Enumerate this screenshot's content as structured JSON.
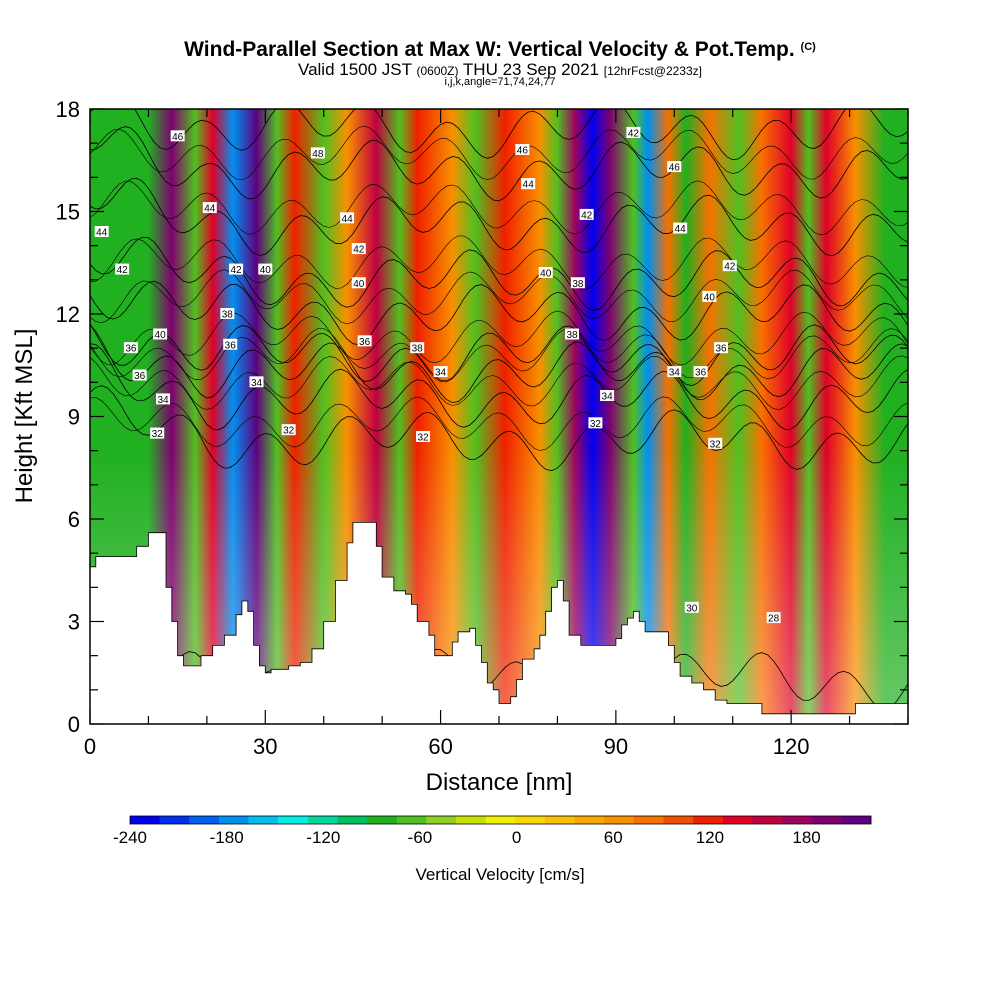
{
  "header": {
    "title": "Wind-Parallel Section at Max W: Vertical Velocity & Pot.Temp.",
    "title_mark": "(C)",
    "subtitle_a": "Valid 1500 JST",
    "subtitle_b": "(0600Z)",
    "subtitle_c": "THU 23 Sep 2021",
    "subtitle_d": "[12hrFcst@2233z]",
    "line3": "i,j,k,angle=71,74,24,77"
  },
  "chart_data": {
    "type": "heatmap",
    "xlabel": "Distance [nm]",
    "ylabel": "Height [Kft MSL]",
    "xlim": [
      0,
      140
    ],
    "ylim": [
      0,
      18
    ],
    "x_ticks": [
      "0",
      "30",
      "60",
      "90",
      "120"
    ],
    "x_tick_values": [
      0,
      30,
      60,
      90,
      120
    ],
    "y_ticks": [
      "0",
      "3",
      "6",
      "9",
      "12",
      "15",
      "18"
    ],
    "y_tick_values": [
      0,
      3,
      6,
      9,
      12,
      15,
      18
    ],
    "colorbar": {
      "title": "Vertical Velocity [cm/s]",
      "labels": [
        "-240",
        "-180",
        "-120",
        "-60",
        "0",
        "60",
        "120",
        "180"
      ],
      "label_values": [
        -240,
        -180,
        -120,
        -60,
        0,
        60,
        120,
        180
      ],
      "range": [
        -240,
        220
      ],
      "colors": [
        "#0000f0",
        "#0030f0",
        "#0060f0",
        "#0090f0",
        "#00c0f0",
        "#00f0e6",
        "#00d8a0",
        "#00c060",
        "#20b020",
        "#50c020",
        "#90d020",
        "#c8e000",
        "#f0f000",
        "#f8d800",
        "#f8c000",
        "#f8a800",
        "#f89000",
        "#f87000",
        "#f05000",
        "#f02000",
        "#e00028",
        "#c00040",
        "#a00060",
        "#800070",
        "#600080"
      ]
    },
    "velocity_bands": [
      {
        "x": 10,
        "value": -90
      },
      {
        "x": 14,
        "value": 200
      },
      {
        "x": 18,
        "value": -60
      },
      {
        "x": 21,
        "value": 140
      },
      {
        "x": 24.5,
        "value": -180
      },
      {
        "x": 28.5,
        "value": 220
      },
      {
        "x": 32,
        "value": -60
      },
      {
        "x": 35,
        "value": 120
      },
      {
        "x": 40,
        "value": -60
      },
      {
        "x": 44,
        "value": 60
      },
      {
        "x": 49,
        "value": 160
      },
      {
        "x": 53,
        "value": -60
      },
      {
        "x": 56,
        "value": 120
      },
      {
        "x": 62,
        "value": 60
      },
      {
        "x": 66,
        "value": -60
      },
      {
        "x": 71,
        "value": 120
      },
      {
        "x": 77,
        "value": 60
      },
      {
        "x": 80,
        "value": -60
      },
      {
        "x": 83,
        "value": 170
      },
      {
        "x": 86,
        "value": -240
      },
      {
        "x": 89,
        "value": 190
      },
      {
        "x": 93,
        "value": -60
      },
      {
        "x": 95.5,
        "value": -180
      },
      {
        "x": 99,
        "value": 90
      },
      {
        "x": 102,
        "value": -90
      },
      {
        "x": 106,
        "value": 90
      },
      {
        "x": 111,
        "value": -60
      },
      {
        "x": 115,
        "value": 90
      },
      {
        "x": 120,
        "value": 130
      },
      {
        "x": 123,
        "value": -60
      },
      {
        "x": 126,
        "value": 140
      },
      {
        "x": 131,
        "value": 60
      },
      {
        "x": 136,
        "value": -90
      }
    ],
    "terrain": [
      [
        0,
        4.6
      ],
      [
        1,
        4.9
      ],
      [
        6,
        4.9
      ],
      [
        8,
        5.2
      ],
      [
        10,
        5.6
      ],
      [
        12,
        5.6
      ],
      [
        13,
        4.0
      ],
      [
        14,
        3.0
      ],
      [
        15,
        2.0
      ],
      [
        16,
        1.7
      ],
      [
        18,
        1.7
      ],
      [
        19,
        2.0
      ],
      [
        21,
        2.3
      ],
      [
        23,
        2.6
      ],
      [
        25,
        3.2
      ],
      [
        26,
        3.6
      ],
      [
        27,
        3.3
      ],
      [
        28,
        2.3
      ],
      [
        29,
        1.7
      ],
      [
        30,
        1.5
      ],
      [
        31,
        1.6
      ],
      [
        34,
        1.7
      ],
      [
        36,
        1.8
      ],
      [
        38,
        2.2
      ],
      [
        40,
        3.0
      ],
      [
        42,
        4.2
      ],
      [
        44,
        5.3
      ],
      [
        45,
        5.9
      ],
      [
        48,
        5.9
      ],
      [
        49,
        5.2
      ],
      [
        50,
        4.3
      ],
      [
        52,
        3.9
      ],
      [
        54,
        3.8
      ],
      [
        55,
        3.5
      ],
      [
        56,
        3.0
      ],
      [
        58,
        2.6
      ],
      [
        59,
        2.0
      ],
      [
        61,
        2.0
      ],
      [
        62,
        2.4
      ],
      [
        63,
        2.7
      ],
      [
        65,
        2.8
      ],
      [
        66,
        2.3
      ],
      [
        67,
        1.8
      ],
      [
        68,
        1.2
      ],
      [
        69,
        1.0
      ],
      [
        70,
        0.6
      ],
      [
        72,
        0.8
      ],
      [
        73,
        1.3
      ],
      [
        74,
        1.9
      ],
      [
        76,
        2.2
      ],
      [
        77,
        2.6
      ],
      [
        78,
        3.3
      ],
      [
        79,
        4.0
      ],
      [
        80,
        4.2
      ],
      [
        81,
        3.6
      ],
      [
        82,
        2.6
      ],
      [
        84,
        2.3
      ],
      [
        88,
        2.3
      ],
      [
        90,
        2.5
      ],
      [
        91,
        2.9
      ],
      [
        92,
        3.1
      ],
      [
        93,
        3.3
      ],
      [
        94,
        3.0
      ],
      [
        95,
        2.7
      ],
      [
        97,
        2.7
      ],
      [
        99,
        2.3
      ],
      [
        100,
        1.8
      ],
      [
        101,
        1.4
      ],
      [
        103,
        1.2
      ],
      [
        105,
        1.0
      ],
      [
        107,
        0.7
      ],
      [
        109,
        0.6
      ],
      [
        111,
        0.6
      ],
      [
        113,
        0.6
      ],
      [
        115,
        0.3
      ],
      [
        120,
        0.3
      ],
      [
        125,
        0.3
      ],
      [
        130,
        0.3
      ],
      [
        131,
        0.6
      ],
      [
        136,
        0.6
      ],
      [
        140,
        0.6
      ]
    ],
    "theta_contours": [
      {
        "label": "30",
        "base": 1.3,
        "label_x": 103
      },
      {
        "label": "32",
        "base": 8.3,
        "label_x": 58
      },
      {
        "label": "34",
        "base": 9.5,
        "label_x": 60
      },
      {
        "label": "36",
        "base": 10.3,
        "label_x": 47
      },
      {
        "label": "38",
        "base": 10.8,
        "label_x": 56
      },
      {
        "label": "40",
        "base": 12.0,
        "label_x": 47
      },
      {
        "label": "42",
        "base": 13.0,
        "label_x": 47
      },
      {
        "label": "44",
        "base": 14.6,
        "label_x": 44
      },
      {
        "label": "46",
        "base": 16.2,
        "label_x": 74
      },
      {
        "label": "48",
        "base": 17.4,
        "label_x": 39
      }
    ],
    "contour_labels": [
      {
        "text": "46",
        "x": 15,
        "y": 17.2
      },
      {
        "text": "48",
        "x": 39,
        "y": 16.7
      },
      {
        "text": "46",
        "x": 74,
        "y": 16.8
      },
      {
        "text": "44",
        "x": 75,
        "y": 15.8
      },
      {
        "text": "42",
        "x": 93,
        "y": 17.3
      },
      {
        "text": "46",
        "x": 100,
        "y": 16.3
      },
      {
        "text": "44",
        "x": 2,
        "y": 14.4
      },
      {
        "text": "44",
        "x": 20.5,
        "y": 15.1
      },
      {
        "text": "44",
        "x": 44,
        "y": 14.8
      },
      {
        "text": "42",
        "x": 85,
        "y": 14.9
      },
      {
        "text": "44",
        "x": 101,
        "y": 14.5
      },
      {
        "text": "42",
        "x": 5.5,
        "y": 13.3
      },
      {
        "text": "42",
        "x": 46,
        "y": 13.9
      },
      {
        "text": "42",
        "x": 25,
        "y": 13.3
      },
      {
        "text": "40",
        "x": 30,
        "y": 13.3
      },
      {
        "text": "40",
        "x": 78,
        "y": 13.2
      },
      {
        "text": "38",
        "x": 83.5,
        "y": 12.9
      },
      {
        "text": "42",
        "x": 109.5,
        "y": 13.4
      },
      {
        "text": "40",
        "x": 46,
        "y": 12.9
      },
      {
        "text": "40",
        "x": 106,
        "y": 12.5
      },
      {
        "text": "38",
        "x": 23.5,
        "y": 12.0
      },
      {
        "text": "40",
        "x": 12,
        "y": 11.4
      },
      {
        "text": "38",
        "x": 82.5,
        "y": 11.4
      },
      {
        "text": "36",
        "x": 7,
        "y": 11.0
      },
      {
        "text": "36",
        "x": 24,
        "y": 11.1
      },
      {
        "text": "36",
        "x": 47,
        "y": 11.2
      },
      {
        "text": "38",
        "x": 56,
        "y": 11.0
      },
      {
        "text": "36",
        "x": 108,
        "y": 11.0
      },
      {
        "text": "36",
        "x": 8.5,
        "y": 10.2
      },
      {
        "text": "34",
        "x": 60,
        "y": 10.3
      },
      {
        "text": "34",
        "x": 28.5,
        "y": 10.0
      },
      {
        "text": "34",
        "x": 100,
        "y": 10.3
      },
      {
        "text": "36",
        "x": 104.5,
        "y": 10.3
      },
      {
        "text": "34",
        "x": 88.5,
        "y": 9.6
      },
      {
        "text": "34",
        "x": 12.5,
        "y": 9.5
      },
      {
        "text": "32",
        "x": 11.5,
        "y": 8.5
      },
      {
        "text": "32",
        "x": 34,
        "y": 8.6
      },
      {
        "text": "32",
        "x": 57,
        "y": 8.4
      },
      {
        "text": "32",
        "x": 86.5,
        "y": 8.8
      },
      {
        "text": "32",
        "x": 107,
        "y": 8.2
      },
      {
        "text": "30",
        "x": 103,
        "y": 3.4
      },
      {
        "text": "28",
        "x": 117,
        "y": 3.1
      }
    ]
  }
}
